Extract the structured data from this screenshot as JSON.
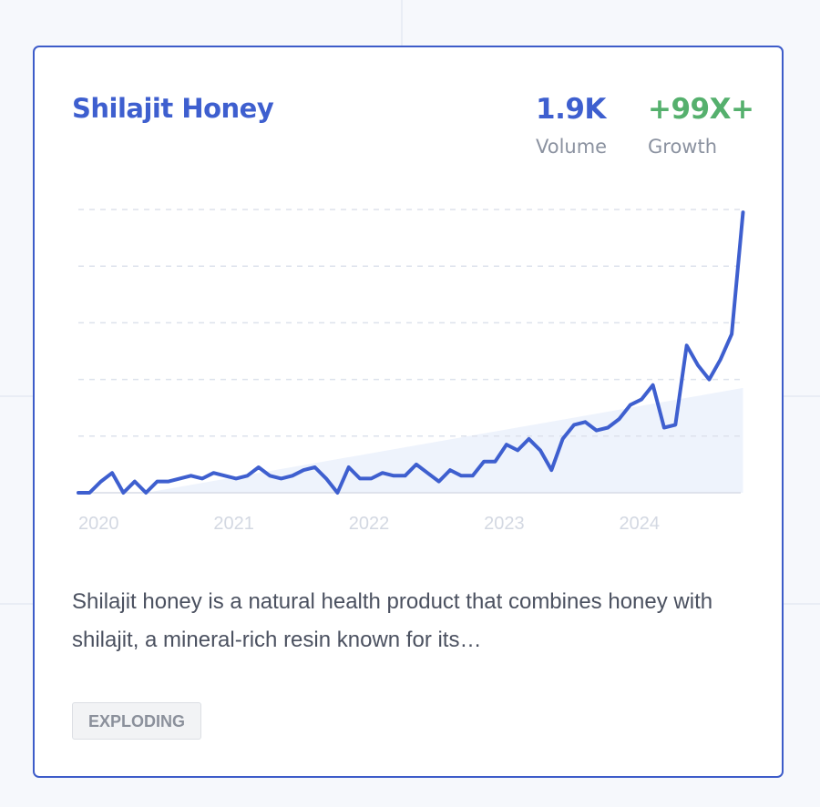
{
  "card": {
    "title": "Shilajit Honey",
    "volume": {
      "value": "1.9K",
      "label": "Volume"
    },
    "growth": {
      "value": "+99X+",
      "label": "Growth"
    },
    "description": "Shilajit honey is a natural health product that combines honey with shilajit, a mineral-rich resin known for its…",
    "badge": "EXPLODING"
  },
  "colors": {
    "accent": "#3e5fcf",
    "growth": "#55b06d",
    "trend_fill": "#eef3fc",
    "card_border": "#3d5cc9"
  },
  "chart_data": {
    "type": "line",
    "title": "",
    "xlabel": "",
    "ylabel": "",
    "x_ticks": [
      "2020",
      "2021",
      "2022",
      "2023",
      "2024"
    ],
    "x_range": [
      2020,
      2024.9
    ],
    "y_range": [
      0,
      100
    ],
    "y_gridlines": 5,
    "grid": true,
    "x": [
      2020.0,
      2020.083,
      2020.167,
      2020.25,
      2020.333,
      2020.417,
      2020.5,
      2020.583,
      2020.667,
      2020.75,
      2020.833,
      2020.917,
      2021.0,
      2021.083,
      2021.167,
      2021.25,
      2021.333,
      2021.417,
      2021.5,
      2021.583,
      2021.667,
      2021.75,
      2021.833,
      2021.917,
      2022.0,
      2022.083,
      2022.167,
      2022.25,
      2022.333,
      2022.417,
      2022.5,
      2022.583,
      2022.667,
      2022.75,
      2022.833,
      2022.917,
      2023.0,
      2023.083,
      2023.167,
      2023.25,
      2023.333,
      2023.417,
      2023.5,
      2023.583,
      2023.667,
      2023.75,
      2023.833,
      2023.917,
      2024.0,
      2024.083,
      2024.167,
      2024.25,
      2024.333,
      2024.417,
      2024.5,
      2024.583,
      2024.667,
      2024.75,
      2024.833,
      2024.917
    ],
    "values": [
      0,
      0,
      4,
      7,
      0,
      4,
      0,
      4,
      4,
      5,
      6,
      5,
      7,
      6,
      5,
      6,
      9,
      6,
      5,
      6,
      8,
      9,
      5,
      0,
      9,
      5,
      5,
      7,
      6,
      6,
      10,
      7,
      4,
      8,
      6,
      6,
      11,
      11,
      17,
      15,
      19,
      15,
      8,
      19,
      24,
      25,
      22,
      23,
      26,
      31,
      33,
      38,
      23,
      24,
      52,
      45,
      40,
      47,
      56,
      99
    ],
    "trend": {
      "x": [
        2020.5,
        2024.917
      ],
      "values": [
        0,
        37
      ]
    }
  }
}
